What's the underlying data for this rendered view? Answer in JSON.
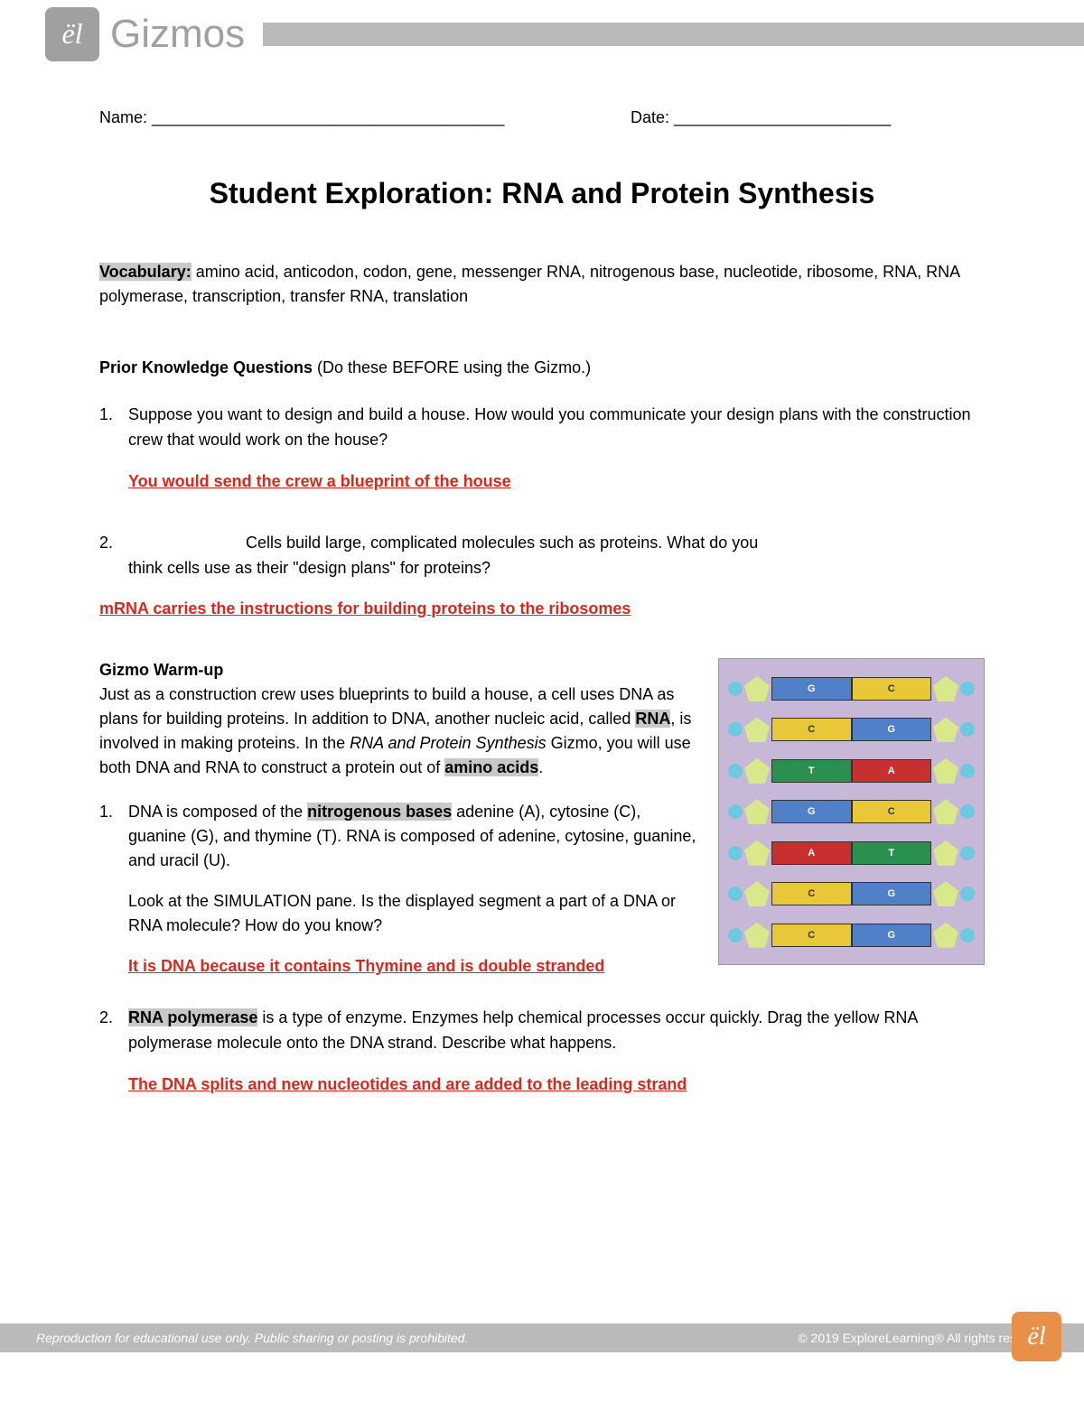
{
  "header": {
    "logo_glyph": "ël",
    "brand": "Gizmos"
  },
  "fields": {
    "name_label": "Name:",
    "name_line": " _______________________________________",
    "date_label": "Date:",
    "date_line": " ________________________"
  },
  "title": "Student Exploration: RNA and Protein Synthesis",
  "vocab": {
    "label": "Vocabulary:",
    "terms": " amino acid, anticodon, codon, gene, messenger RNA, nitrogenous base, nucleotide, ribosome, RNA, RNA polymerase, transcription, transfer RNA, translation"
  },
  "prior": {
    "heading_bold": "Prior Knowledge Questions",
    "heading_rest": " (Do these BEFORE using the Gizmo.)",
    "q1_num": "1.",
    "q1_text": "Suppose you want to design and build a house. How would you communicate your design plans with the construction crew that would work on the house?",
    "q1_answer": "You would send the crew a blueprint of the house ",
    "q2_num": "2.",
    "q2_text_a": "Cells build large, complicated molecules such as proteins. What do you",
    "q2_text_b": "think cells use as their \"design plans\" for proteins?",
    "q2_answer": "mRNA carries the instructions for building proteins to the ribosomes"
  },
  "warmup": {
    "heading": "Gizmo Warm-up",
    "p1_a": "Just as a construction crew uses blueprints to build a house, a cell uses DNA as plans for building proteins. In addition to DNA, another nucleic acid, called ",
    "p1_rna": "RNA",
    "p1_b": ", is involved in making proteins. In the ",
    "p1_italic": "RNA and Protein Synthesis",
    "p1_c": " Gizmo, you will use both DNA and RNA to construct a protein out of ",
    "p1_amino": "amino acids",
    "p1_d": ".",
    "q1_num": "1.",
    "q1_a": "DNA is composed of the ",
    "q1_hl": "nitrogenous bases",
    "q1_b": " adenine (A), cytosine (C), guanine (G), and thymine (T). RNA is composed of adenine, cytosine, guanine, and uracil (U).",
    "q1_c": "Look at the SIMULATION pane. Is the displayed segment a part of a DNA or RNA molecule? How do you know?",
    "q1_answer": "It is DNA because it contains Thymine and is double stranded ",
    "q2_num": "2.",
    "q2_hl": "RNA polymerase",
    "q2_a": " is a type of enzyme. Enzymes help chemical processes occur quickly. Drag the yellow RNA polymerase molecule onto the DNA strand. Describe what happens.",
    "q2_answer": "The DNA splits and new nucleotides and are added to the leading strand "
  },
  "dna_diagram": {
    "background": "#c8b8d8",
    "pentagon_color": "#d8e88a",
    "circle_color": "#6ec8e0",
    "rungs": [
      {
        "left": {
          "color": "blue",
          "label": "G"
        },
        "right": {
          "color": "yellow",
          "label": "C"
        }
      },
      {
        "left": {
          "color": "yellow",
          "label": "C"
        },
        "right": {
          "color": "blue",
          "label": "G"
        }
      },
      {
        "left": {
          "color": "green",
          "label": "T"
        },
        "right": {
          "color": "red",
          "label": "A"
        }
      },
      {
        "left": {
          "color": "blue",
          "label": "G"
        },
        "right": {
          "color": "yellow",
          "label": "C"
        }
      },
      {
        "left": {
          "color": "red",
          "label": "A"
        },
        "right": {
          "color": "green",
          "label": "T"
        }
      },
      {
        "left": {
          "color": "yellow",
          "label": "C"
        },
        "right": {
          "color": "blue",
          "label": "G"
        }
      },
      {
        "left": {
          "color": "yellow",
          "label": "C"
        },
        "right": {
          "color": "blue",
          "label": "G"
        }
      }
    ]
  },
  "footer": {
    "left": "Reproduction for educational use only. Public sharing or posting is prohibited.",
    "right": "© 2019 ExploreLearning®  All rights reserved",
    "logo_glyph": "ël"
  }
}
